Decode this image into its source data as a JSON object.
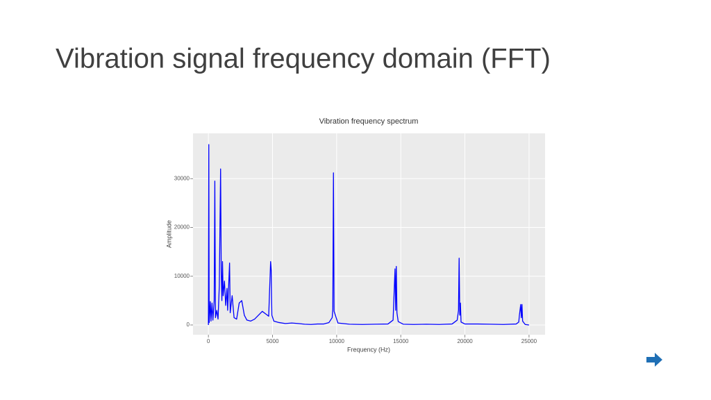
{
  "slide_title": "Vibration signal frequency domain (FFT)",
  "chart_data": {
    "type": "line",
    "title": "Vibration frequency spectrum",
    "x_label": "Frequency (Hz)",
    "y_label": "Amplitude",
    "color": "#0000ff",
    "grid": true,
    "xlim": [
      -1200,
      26250
    ],
    "ylim": [
      -2000,
      39300
    ],
    "xticks": [
      0,
      5000,
      10000,
      15000,
      20000,
      25000
    ],
    "yticks": [
      0,
      10000,
      20000,
      30000
    ],
    "x": [
      0,
      30,
      60,
      150,
      200,
      280,
      350,
      450,
      500,
      550,
      650,
      750,
      850,
      950,
      1000,
      1050,
      1100,
      1150,
      1250,
      1350,
      1450,
      1500,
      1650,
      1700,
      1850,
      2000,
      2200,
      2400,
      2600,
      2800,
      3000,
      3300,
      3600,
      3900,
      4200,
      4500,
      4700,
      4850,
      4900,
      4950,
      5100,
      5500,
      6000,
      6500,
      7000,
      7500,
      8000,
      8500,
      9000,
      9400,
      9650,
      9700,
      9750,
      9800,
      9900,
      10100,
      11000,
      12000,
      13000,
      14000,
      14400,
      14550,
      14600,
      14650,
      14700,
      14800,
      15200,
      16000,
      17000,
      18000,
      19000,
      19400,
      19500,
      19550,
      19600,
      19650,
      19700,
      20000,
      21000,
      22000,
      23000,
      24000,
      24200,
      24250,
      24350,
      24400,
      24450,
      24500,
      24700,
      25000
    ],
    "values": [
      0,
      37000,
      500,
      4800,
      800,
      4500,
      1000,
      5000,
      29500,
      1500,
      3000,
      1200,
      8000,
      32000,
      11000,
      5000,
      13000,
      6000,
      9000,
      4000,
      7500,
      3000,
      12700,
      2500,
      6000,
      1500,
      1200,
      4500,
      5000,
      2000,
      1000,
      800,
      1200,
      2000,
      2800,
      2200,
      1800,
      13000,
      11200,
      2000,
      800,
      500,
      300,
      400,
      300,
      150,
      100,
      200,
      200,
      500,
      1500,
      3200,
      31200,
      2800,
      2000,
      400,
      150,
      100,
      150,
      200,
      1000,
      11500,
      3000,
      12000,
      2500,
      700,
      150,
      100,
      150,
      100,
      200,
      1000,
      3000,
      13700,
      2000,
      4500,
      600,
      200,
      200,
      150,
      100,
      200,
      600,
      2000,
      4200,
      1500,
      4200,
      800,
      100,
      0
    ]
  }
}
